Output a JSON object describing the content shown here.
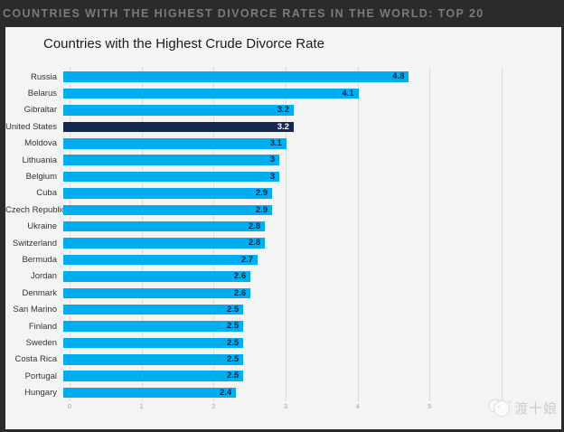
{
  "header": {
    "title": "COUNTRIES WITH THE HIGHEST DIVORCE RATES IN THE WORLD: TOP 20"
  },
  "chart": {
    "title": "Countries with the Highest Crude Divorce Rate"
  },
  "watermark": {
    "text": "渡十娘",
    "icon": "overlapping-circles-logo"
  },
  "colors": {
    "bar": "#00aeef",
    "highlight_bar": "#112a4e",
    "value_text": "#0d2a50",
    "value_text_highlight": "#ffffff",
    "header_bg": "#2b2b2b",
    "header_text": "#7a7a7a",
    "panel_bg": "#f4f4f4",
    "gridline": "#dddddd",
    "axis_text": "#a5a5a5"
  },
  "chart_data": {
    "type": "bar",
    "orientation": "horizontal",
    "title": "Countries with the Highest Crude Divorce Rate",
    "categories": [
      "Russia",
      "Belarus",
      "Gibraltar",
      "United States",
      "Moldova",
      "Lithuania",
      "Belgium",
      "Cuba",
      "Czech Republic",
      "Ukraine",
      "Switzerland",
      "Bermuda",
      "Jordan",
      "Denmark",
      "San Marino",
      "Finland",
      "Sweden",
      "Costa Rica",
      "Portugal",
      "Hungary"
    ],
    "values": [
      4.8,
      4.1,
      3.2,
      3.2,
      3.1,
      3,
      3,
      2.9,
      2.9,
      2.8,
      2.8,
      2.7,
      2.6,
      2.6,
      2.5,
      2.5,
      2.5,
      2.5,
      2.5,
      2.4
    ],
    "value_labels": [
      "4.8",
      "4.1",
      "3.2",
      "3.2",
      "3.1",
      "3",
      "3",
      "2.9",
      "2.9",
      "2.8",
      "2.8",
      "2.7",
      "2.6",
      "2.6",
      "2.5",
      "2.5",
      "2.5",
      "2.5",
      "2.5",
      "2.4"
    ],
    "highlight_category": "United States",
    "highlight_index": 3,
    "xlabel": "",
    "ylabel": "",
    "xlim": [
      0,
      6
    ],
    "x_ticks": [
      0,
      1,
      2,
      3,
      4,
      5,
      6
    ],
    "grid": true,
    "legend": false
  }
}
